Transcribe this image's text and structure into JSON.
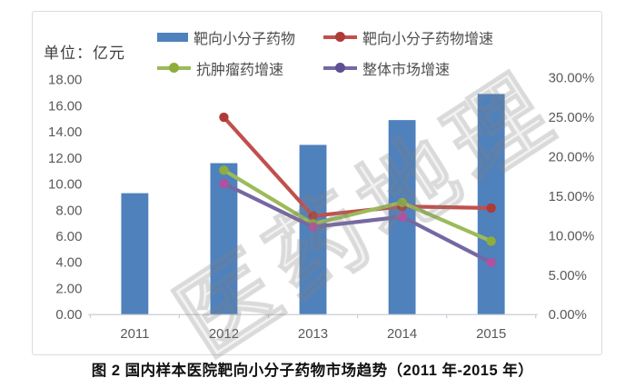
{
  "unit_label": "单位：亿元",
  "watermark": "医药地理",
  "caption": "图 2 国内样本医院靶向小分子药物市场趋势（2011 年-2015 年）",
  "colors": {
    "bar_blue": "#4F81BD",
    "line_red": "#C0504D",
    "line_green": "#9BBB59",
    "line_purple": "#7568A2",
    "axis_text": "#595959",
    "axis_line": "#c9ced6"
  },
  "chart_data": {
    "type": "bar+line",
    "title": "图 2 国内样本医院靶向小分子药物市场趋势（2011 年-2015 年）",
    "unit": "单位：亿元",
    "categories": [
      "2011",
      "2012",
      "2013",
      "2014",
      "2015"
    ],
    "series": [
      {
        "name": "靶向小分子药物",
        "type": "bar",
        "axis": "left",
        "color": "#4F81BD",
        "values": [
          9.3,
          11.6,
          13.0,
          14.9,
          16.9
        ]
      },
      {
        "name": "靶向小分子药物增速",
        "type": "line",
        "axis": "right",
        "color": "#C0504D",
        "marker_color": "#AE3B38",
        "legend_dot": "#AE3B38",
        "values": [
          null,
          25.0,
          12.5,
          13.7,
          13.5
        ]
      },
      {
        "name": "抗肿瘤药增速",
        "type": "line",
        "axis": "right",
        "color": "#9BBB59",
        "marker_color": "#8FAD3B",
        "legend_dot": "#8FAD3B",
        "values": [
          null,
          18.3,
          11.5,
          14.2,
          9.3
        ]
      },
      {
        "name": "整体市场增速",
        "type": "line",
        "axis": "right",
        "color": "#7568A2",
        "marker_color": "#B0529F",
        "legend_dot": "#5E5093",
        "values": [
          null,
          16.6,
          11.1,
          12.4,
          6.6
        ]
      }
    ],
    "left_axis": {
      "min": 0,
      "max": 18,
      "step": 2,
      "ticks": [
        "0.00",
        "2.00",
        "4.00",
        "6.00",
        "8.00",
        "10.00",
        "12.00",
        "14.00",
        "16.00",
        "18.00"
      ]
    },
    "right_axis": {
      "min": 0,
      "max": 30,
      "step": 5,
      "ticks": [
        "0.00%",
        "5.00%",
        "10.00%",
        "15.00%",
        "20.00%",
        "25.00%",
        "30.00%"
      ]
    },
    "grid": false,
    "legend_position": "top"
  }
}
